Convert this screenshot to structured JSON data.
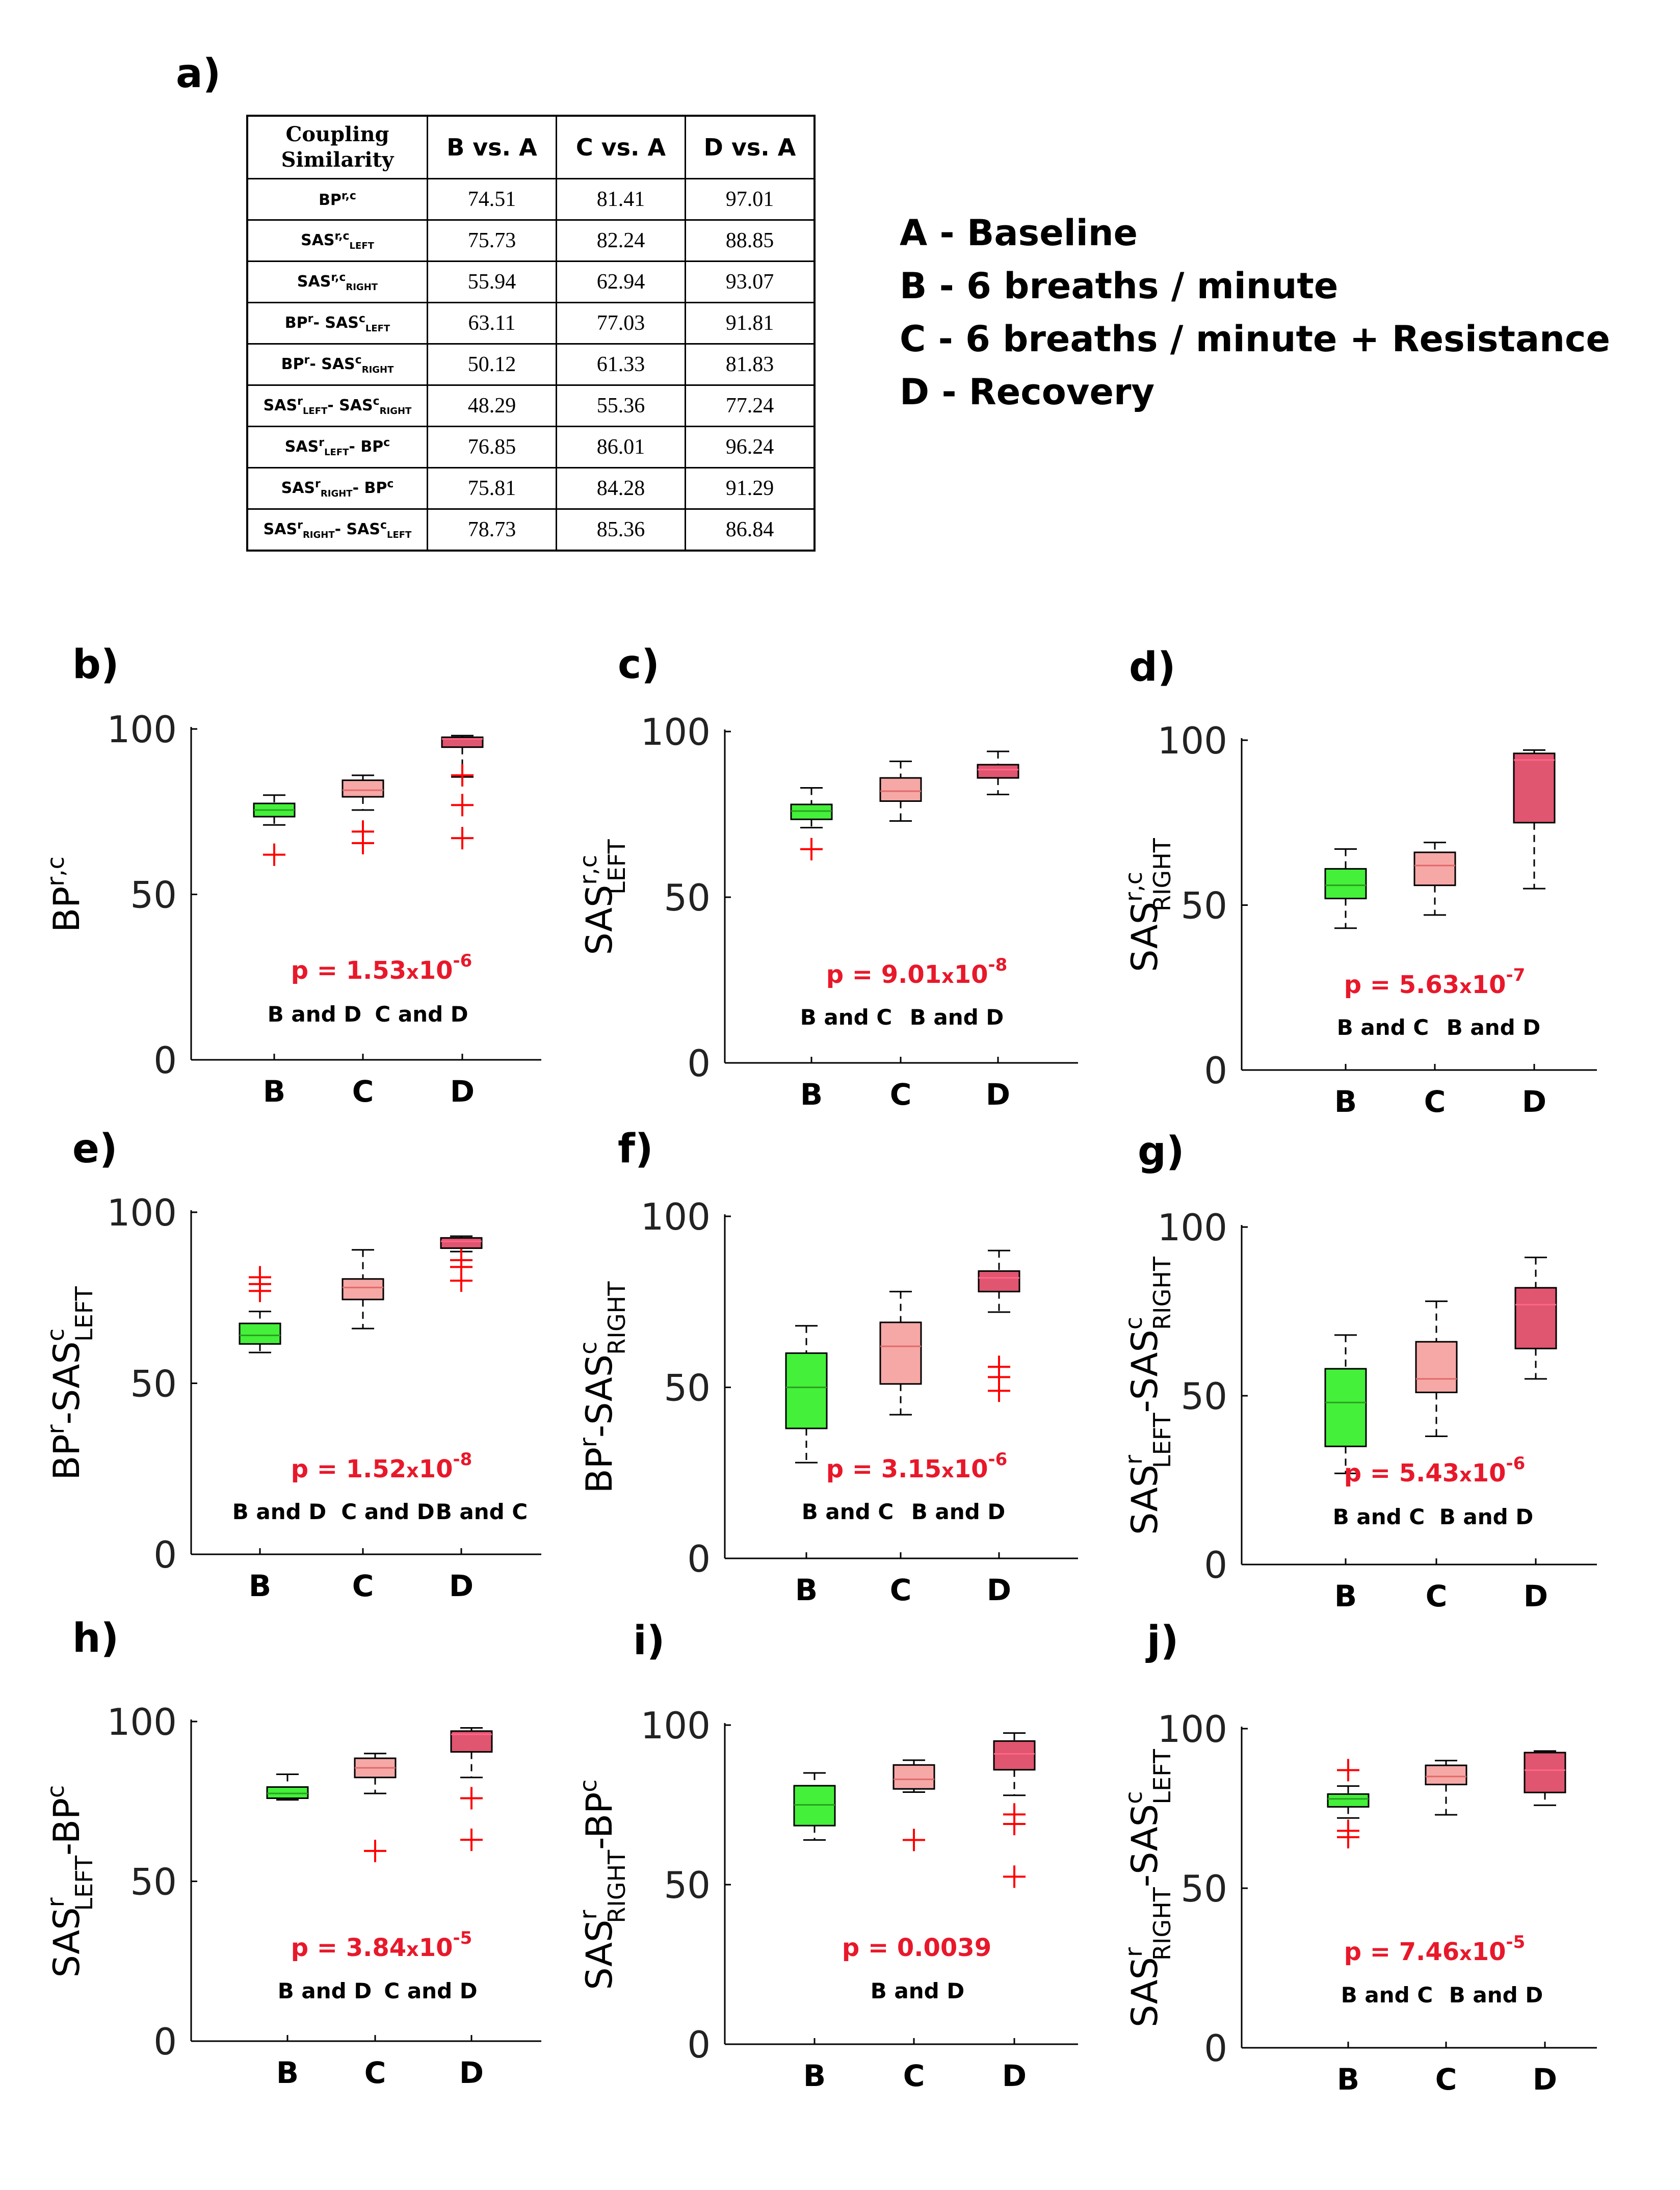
{
  "panel_a": {
    "label": "a)",
    "table": {
      "corner_line1": "Coupling",
      "corner_line2": "Similarity",
      "columns": [
        "B vs. A",
        "C vs. A",
        "D vs. A"
      ],
      "rows": [
        {
          "base": "BP",
          "sup": "r,c",
          "sub": "",
          "base2": "",
          "sup2": "",
          "sub2": "",
          "values": [
            "74.51",
            "81.41",
            "97.01"
          ]
        },
        {
          "base": "SAS",
          "sup": "r,c",
          "sub": "LEFT",
          "base2": "",
          "sup2": "",
          "sub2": "",
          "values": [
            "75.73",
            "82.24",
            "88.85"
          ]
        },
        {
          "base": "SAS",
          "sup": "r,c",
          "sub": "RIGHT",
          "base2": "",
          "sup2": "",
          "sub2": "",
          "values": [
            "55.94",
            "62.94",
            "93.07"
          ]
        },
        {
          "base": "BP",
          "sup": "r",
          "sub": "",
          "base2": "- SAS",
          "sup2": "c",
          "sub2": "LEFT",
          "values": [
            "63.11",
            "77.03",
            "91.81"
          ]
        },
        {
          "base": "BP",
          "sup": "r",
          "sub": "",
          "base2": "- SAS",
          "sup2": "c",
          "sub2": "RIGHT",
          "values": [
            "50.12",
            "61.33",
            "81.83"
          ]
        },
        {
          "base": "SAS",
          "sup": "r",
          "sub": "LEFT",
          "base2": "- SAS",
          "sup2": "c",
          "sub2": "RIGHT",
          "values": [
            "48.29",
            "55.36",
            "77.24"
          ]
        },
        {
          "base": "SAS",
          "sup": "r",
          "sub": "LEFT",
          "base2": "- BP",
          "sup2": "c",
          "sub2": "",
          "values": [
            "76.85",
            "86.01",
            "96.24"
          ]
        },
        {
          "base": "SAS",
          "sup": "r",
          "sub": "RIGHT",
          "base2": "- BP",
          "sup2": "c",
          "sub2": "",
          "values": [
            "75.81",
            "84.28",
            "91.29"
          ]
        },
        {
          "base": "SAS",
          "sup": "r",
          "sub": "RIGHT",
          "base2": "- SAS",
          "sup2": "c",
          "sub2": "LEFT",
          "values": [
            "78.73",
            "85.36",
            "86.84"
          ]
        }
      ]
    },
    "legend": [
      "A - Baseline",
      "B - 6 breaths / minute",
      "C - 6 breaths / minute + Resistance",
      "D - Recovery"
    ]
  },
  "colors": {
    "B": "#44f03a",
    "C": "#f6a8a6",
    "D": "#e0556f",
    "median_B": "#2aa020",
    "median_C": "#e06a6a",
    "median_D": "#ff6688",
    "outlier": "#ff0000",
    "pvalue": "#e8182a"
  },
  "chart_data": [
    {
      "id": "b",
      "label": "b)",
      "type": "box",
      "categories": [
        "B",
        "C",
        "D"
      ],
      "ylim": [
        0,
        100
      ],
      "yticks": [
        "0",
        "50",
        "100"
      ],
      "ylabel": {
        "base": "BP",
        "sup": "r,c",
        "sub": "",
        "base2": "",
        "sup2": "",
        "sub2": ""
      },
      "pvalue": {
        "prefix": "p = 1.53",
        "times": "x",
        "base": "10",
        "exp": "-6"
      },
      "pairs": [
        "B and D",
        "C and D"
      ],
      "boxes": [
        {
          "min": 71,
          "q1": 73.5,
          "median": 75.5,
          "q3": 77.5,
          "max": 80,
          "outliers": [
            62
          ]
        },
        {
          "min": 75.5,
          "q1": 79.5,
          "median": 81.5,
          "q3": 84.5,
          "max": 86,
          "outliers": [
            65.5,
            69
          ]
        },
        {
          "min": 85.5,
          "q1": 94.5,
          "median": 97,
          "q3": 97.5,
          "max": 98,
          "outliers": [
            67,
            77,
            86
          ]
        }
      ]
    },
    {
      "id": "c",
      "label": "c)",
      "type": "box",
      "categories": [
        "B",
        "C",
        "D"
      ],
      "ylim": [
        0,
        100
      ],
      "yticks": [
        "0",
        "50",
        "100"
      ],
      "ylabel": {
        "base": "SAS",
        "sup": "r,c",
        "sub": "LEFT",
        "base2": "",
        "sup2": "",
        "sub2": ""
      },
      "pvalue": {
        "prefix": "p = 9.01",
        "times": "x",
        "base": "10",
        "exp": "-8"
      },
      "pairs": [
        "B and C",
        "B and D"
      ],
      "boxes": [
        {
          "min": 71,
          "q1": 73.5,
          "median": 76,
          "q3": 78,
          "max": 83,
          "outliers": [
            64.5
          ]
        },
        {
          "min": 73,
          "q1": 79,
          "median": 82,
          "q3": 86,
          "max": 91,
          "outliers": []
        },
        {
          "min": 81,
          "q1": 86,
          "median": 88.5,
          "q3": 90,
          "max": 94,
          "outliers": []
        }
      ]
    },
    {
      "id": "d",
      "label": "d)",
      "type": "box",
      "categories": [
        "B",
        "C",
        "D"
      ],
      "ylim": [
        0,
        100
      ],
      "yticks": [
        "0",
        "50",
        "100"
      ],
      "ylabel": {
        "base": "SAS",
        "sup": "r,c",
        "sub": "RIGHT",
        "base2": "",
        "sup2": "",
        "sub2": ""
      },
      "pvalue": {
        "prefix": "p = 5.63",
        "times": "x",
        "base": "10",
        "exp": "-7"
      },
      "pairs": [
        "B and C",
        "B and D"
      ],
      "boxes": [
        {
          "min": 43,
          "q1": 52,
          "median": 56,
          "q3": 61,
          "max": 67,
          "outliers": []
        },
        {
          "min": 47,
          "q1": 56,
          "median": 62,
          "q3": 66,
          "max": 69,
          "outliers": []
        },
        {
          "min": 55,
          "q1": 75,
          "median": 94,
          "q3": 96,
          "max": 97,
          "outliers": []
        }
      ]
    },
    {
      "id": "e",
      "label": "e)",
      "type": "box",
      "categories": [
        "B",
        "C",
        "D"
      ],
      "ylim": [
        0,
        100
      ],
      "yticks": [
        "0",
        "50",
        "100"
      ],
      "ylabel": {
        "base": "BP",
        "sup": "r",
        "sub": "",
        "base2": "-SAS",
        "sup2": "c",
        "sub2": "LEFT"
      },
      "pvalue": {
        "prefix": "p = 1.52",
        "times": "x",
        "base": "10",
        "exp": "-8"
      },
      "pairs": [
        "B and D",
        "C and D",
        "B and C"
      ],
      "boxes": [
        {
          "min": 59,
          "q1": 61.5,
          "median": 64,
          "q3": 67.5,
          "max": 71,
          "outliers": [
            77,
            79,
            81
          ]
        },
        {
          "min": 66,
          "q1": 74.5,
          "median": 78,
          "q3": 80.5,
          "max": 89,
          "outliers": []
        },
        {
          "min": 88.5,
          "q1": 89.5,
          "median": 91.5,
          "q3": 92.5,
          "max": 93,
          "outliers": [
            80,
            84,
            86
          ]
        }
      ]
    },
    {
      "id": "f",
      "label": "f)",
      "type": "box",
      "categories": [
        "B",
        "C",
        "D"
      ],
      "ylim": [
        0,
        100
      ],
      "yticks": [
        "0",
        "50",
        "100"
      ],
      "ylabel": {
        "base": "BP",
        "sup": "r",
        "sub": "",
        "base2": "-SAS",
        "sup2": "c",
        "sub2": "RIGHT"
      },
      "pvalue": {
        "prefix": "p = 3.15",
        "times": "x",
        "base": "10",
        "exp": "-6"
      },
      "pairs": [
        "B and C",
        "B and D"
      ],
      "boxes": [
        {
          "min": 28,
          "q1": 38,
          "median": 50,
          "q3": 60,
          "max": 68,
          "outliers": []
        },
        {
          "min": 42,
          "q1": 51,
          "median": 62,
          "q3": 69,
          "max": 78,
          "outliers": []
        },
        {
          "min": 72,
          "q1": 78,
          "median": 82,
          "q3": 84,
          "max": 90,
          "outliers": [
            49,
            53,
            56
          ]
        }
      ]
    },
    {
      "id": "g",
      "label": "g)",
      "type": "box",
      "categories": [
        "B",
        "C",
        "D"
      ],
      "ylim": [
        0,
        100
      ],
      "yticks": [
        "0",
        "50",
        "100"
      ],
      "ylabel": {
        "base": "SAS",
        "sup": "r",
        "sub": "LEFT",
        "base2": "-SAS",
        "sup2": "c",
        "sub2": "RIGHT"
      },
      "pvalue": {
        "prefix": "p = 5.43",
        "times": "x",
        "base": "10",
        "exp": "-6"
      },
      "pairs": [
        "B and C",
        "B and D"
      ],
      "boxes": [
        {
          "min": 27,
          "q1": 35,
          "median": 48,
          "q3": 58,
          "max": 68,
          "outliers": []
        },
        {
          "min": 38,
          "q1": 51,
          "median": 55,
          "q3": 66,
          "max": 78,
          "outliers": []
        },
        {
          "min": 55,
          "q1": 64,
          "median": 77,
          "q3": 82,
          "max": 91,
          "outliers": []
        }
      ]
    },
    {
      "id": "h",
      "label": "h)",
      "type": "box",
      "categories": [
        "B",
        "C",
        "D"
      ],
      "ylim": [
        0,
        100
      ],
      "yticks": [
        "0",
        "50",
        "100"
      ],
      "ylabel": {
        "base": "SAS",
        "sup": "r",
        "sub": "LEFT",
        "base2": "-BP",
        "sup2": "c",
        "sub2": ""
      },
      "pvalue": {
        "prefix": "p = 3.84",
        "times": "x",
        "base": "10",
        "exp": "-5"
      },
      "pairs": [
        "B and D",
        "C and D"
      ],
      "boxes": [
        {
          "min": 75.5,
          "q1": 76,
          "median": 77.5,
          "q3": 79.5,
          "max": 83.5,
          "outliers": []
        },
        {
          "min": 77.5,
          "q1": 82.5,
          "median": 85.5,
          "q3": 88.5,
          "max": 90,
          "outliers": [
            59.5
          ]
        },
        {
          "min": 82.5,
          "q1": 90.5,
          "median": 96,
          "q3": 97,
          "max": 98,
          "outliers": [
            63,
            76
          ]
        }
      ]
    },
    {
      "id": "i",
      "label": "i)",
      "type": "box",
      "categories": [
        "B",
        "C",
        "D"
      ],
      "ylim": [
        0,
        100
      ],
      "yticks": [
        "0",
        "50",
        "100"
      ],
      "ylabel": {
        "base": "SAS",
        "sup": "r",
        "sub": "RIGHT",
        "base2": "-BP",
        "sup2": "c",
        "sub2": ""
      },
      "pvalue": {
        "prefix": "p = 0.0039",
        "times": "",
        "base": "",
        "exp": ""
      },
      "pairs": [
        "B and D"
      ],
      "boxes": [
        {
          "min": 64,
          "q1": 68.5,
          "median": 75,
          "q3": 81,
          "max": 85,
          "outliers": []
        },
        {
          "min": 79,
          "q1": 80,
          "median": 83,
          "q3": 87.5,
          "max": 89,
          "outliers": [
            64
          ]
        },
        {
          "min": 78,
          "q1": 86,
          "median": 91,
          "q3": 95,
          "max": 97.5,
          "outliers": [
            52.5,
            69,
            72
          ]
        }
      ]
    },
    {
      "id": "j",
      "label": "j)",
      "type": "box",
      "categories": [
        "B",
        "C",
        "D"
      ],
      "ylim": [
        0,
        100
      ],
      "yticks": [
        "0",
        "50",
        "100"
      ],
      "ylabel": {
        "base": "SAS",
        "sup": "r",
        "sub": "RIGHT",
        "base2": "-SAS",
        "sup2": "c",
        "sub2": "LEFT"
      },
      "pvalue": {
        "prefix": "p = 7.46",
        "times": "x",
        "base": "10",
        "exp": "-5"
      },
      "pairs": [
        "B and C",
        "B and D"
      ],
      "boxes": [
        {
          "min": 72,
          "q1": 75.5,
          "median": 78,
          "q3": 79.5,
          "max": 82,
          "outliers": [
            66,
            68,
            87
          ]
        },
        {
          "min": 73,
          "q1": 82.5,
          "median": 85,
          "q3": 88.5,
          "max": 90,
          "outliers": []
        },
        {
          "min": 76,
          "q1": 80,
          "median": 87,
          "q3": 92.5,
          "max": 93,
          "outliers": []
        }
      ]
    }
  ]
}
